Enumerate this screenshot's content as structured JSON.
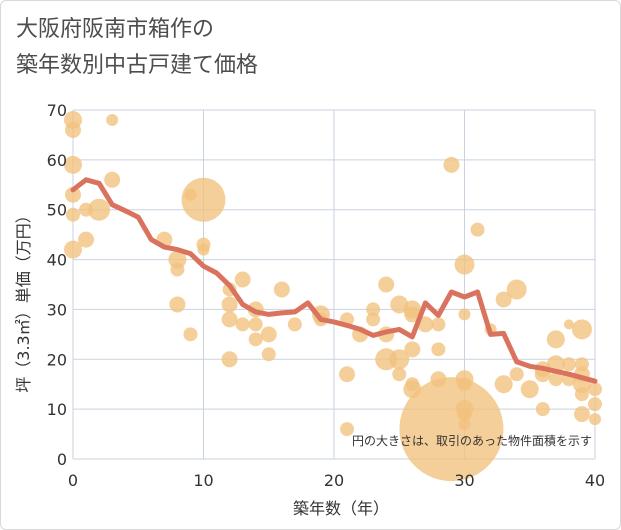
{
  "title_lines": [
    "大阪府阪南市箱作の",
    "築年数別中古戸建て価格"
  ],
  "chart_data": {
    "type": "scatter",
    "title": "大阪府阪南市箱作の築年数別中古戸建て価格",
    "xlabel": "築年数（年）",
    "ylabel": "坪（3.3㎡）単価（万円）",
    "xlim": [
      0,
      40
    ],
    "ylim": [
      0,
      70
    ],
    "xticks": [
      0,
      10,
      20,
      30,
      40
    ],
    "yticks": [
      0,
      10,
      20,
      30,
      40,
      50,
      60,
      70
    ],
    "grid": true,
    "annotation": "円の大きさは、取引のあった物件面積を示す",
    "colors": {
      "bubble": "#f2c27d",
      "line": "#d9735e",
      "grid": "#c9d3e0"
    },
    "series": [
      {
        "kind": "bubble",
        "points": [
          {
            "x": 0,
            "y": 68,
            "s": 9
          },
          {
            "x": 0,
            "y": 66,
            "s": 8
          },
          {
            "x": 0,
            "y": 59,
            "s": 9
          },
          {
            "x": 0,
            "y": 53,
            "s": 8
          },
          {
            "x": 0,
            "y": 49,
            "s": 7
          },
          {
            "x": 0,
            "y": 42,
            "s": 9
          },
          {
            "x": 1,
            "y": 50,
            "s": 7
          },
          {
            "x": 1,
            "y": 44,
            "s": 8
          },
          {
            "x": 2,
            "y": 50,
            "s": 11
          },
          {
            "x": 3,
            "y": 68,
            "s": 6
          },
          {
            "x": 3,
            "y": 56,
            "s": 8
          },
          {
            "x": 7,
            "y": 44,
            "s": 8
          },
          {
            "x": 8,
            "y": 40,
            "s": 9
          },
          {
            "x": 8,
            "y": 38,
            "s": 7
          },
          {
            "x": 8,
            "y": 31,
            "s": 8
          },
          {
            "x": 9,
            "y": 53,
            "s": 6
          },
          {
            "x": 9,
            "y": 25,
            "s": 7
          },
          {
            "x": 10,
            "y": 52,
            "s": 22
          },
          {
            "x": 10,
            "y": 43,
            "s": 7
          },
          {
            "x": 10,
            "y": 42,
            "s": 6
          },
          {
            "x": 12,
            "y": 34,
            "s": 7
          },
          {
            "x": 12,
            "y": 31,
            "s": 8
          },
          {
            "x": 12,
            "y": 28,
            "s": 8
          },
          {
            "x": 12,
            "y": 20,
            "s": 8
          },
          {
            "x": 13,
            "y": 36,
            "s": 8
          },
          {
            "x": 13,
            "y": 27,
            "s": 7
          },
          {
            "x": 14,
            "y": 30,
            "s": 8
          },
          {
            "x": 14,
            "y": 27,
            "s": 7
          },
          {
            "x": 14,
            "y": 24,
            "s": 7
          },
          {
            "x": 15,
            "y": 25,
            "s": 8
          },
          {
            "x": 15,
            "y": 21,
            "s": 7
          },
          {
            "x": 16,
            "y": 34,
            "s": 8
          },
          {
            "x": 17,
            "y": 27,
            "s": 7
          },
          {
            "x": 19,
            "y": 29,
            "s": 9
          },
          {
            "x": 19,
            "y": 28,
            "s": 7
          },
          {
            "x": 21,
            "y": 28,
            "s": 7
          },
          {
            "x": 21,
            "y": 17,
            "s": 8
          },
          {
            "x": 21,
            "y": 6,
            "s": 7
          },
          {
            "x": 22,
            "y": 25,
            "s": 8
          },
          {
            "x": 23,
            "y": 30,
            "s": 7
          },
          {
            "x": 23,
            "y": 28,
            "s": 7
          },
          {
            "x": 24,
            "y": 35,
            "s": 8
          },
          {
            "x": 24,
            "y": 25,
            "s": 8
          },
          {
            "x": 24,
            "y": 20,
            "s": 11
          },
          {
            "x": 25,
            "y": 31,
            "s": 9
          },
          {
            "x": 25,
            "y": 20,
            "s": 10
          },
          {
            "x": 25,
            "y": 17,
            "s": 7
          },
          {
            "x": 26,
            "y": 30,
            "s": 9
          },
          {
            "x": 26,
            "y": 29,
            "s": 8
          },
          {
            "x": 26,
            "y": 22,
            "s": 8
          },
          {
            "x": 26,
            "y": 15,
            "s": 7
          },
          {
            "x": 26,
            "y": 14,
            "s": 9
          },
          {
            "x": 27,
            "y": 27,
            "s": 8
          },
          {
            "x": 28,
            "y": 27,
            "s": 7
          },
          {
            "x": 28,
            "y": 22,
            "s": 7
          },
          {
            "x": 28,
            "y": 16,
            "s": 8
          },
          {
            "x": 29,
            "y": 59,
            "s": 8
          },
          {
            "x": 29,
            "y": 6,
            "s": 52
          },
          {
            "x": 30,
            "y": 39,
            "s": 10
          },
          {
            "x": 30,
            "y": 29,
            "s": 6
          },
          {
            "x": 30,
            "y": 16,
            "s": 9
          },
          {
            "x": 30,
            "y": 15,
            "s": 7
          },
          {
            "x": 30,
            "y": 10,
            "s": 9
          },
          {
            "x": 30,
            "y": 9,
            "s": 7
          },
          {
            "x": 30,
            "y": 7,
            "s": 6
          },
          {
            "x": 31,
            "y": 46,
            "s": 7
          },
          {
            "x": 32,
            "y": 26,
            "s": 6
          },
          {
            "x": 33,
            "y": 32,
            "s": 8
          },
          {
            "x": 33,
            "y": 15,
            "s": 9
          },
          {
            "x": 34,
            "y": 34,
            "s": 10
          },
          {
            "x": 34,
            "y": 17,
            "s": 7
          },
          {
            "x": 35,
            "y": 14,
            "s": 9
          },
          {
            "x": 36,
            "y": 18,
            "s": 8
          },
          {
            "x": 36,
            "y": 17,
            "s": 8
          },
          {
            "x": 36,
            "y": 10,
            "s": 7
          },
          {
            "x": 37,
            "y": 24,
            "s": 9
          },
          {
            "x": 37,
            "y": 19,
            "s": 9
          },
          {
            "x": 37,
            "y": 16,
            "s": 7
          },
          {
            "x": 38,
            "y": 27,
            "s": 5
          },
          {
            "x": 38,
            "y": 19,
            "s": 7
          },
          {
            "x": 38,
            "y": 16,
            "s": 7
          },
          {
            "x": 39,
            "y": 26,
            "s": 10
          },
          {
            "x": 39,
            "y": 19,
            "s": 7
          },
          {
            "x": 39,
            "y": 17,
            "s": 8
          },
          {
            "x": 39,
            "y": 15,
            "s": 9
          },
          {
            "x": 39,
            "y": 13,
            "s": 7
          },
          {
            "x": 39,
            "y": 9,
            "s": 8
          },
          {
            "x": 40,
            "y": 14,
            "s": 7
          },
          {
            "x": 40,
            "y": 11,
            "s": 7
          },
          {
            "x": 40,
            "y": 8,
            "s": 6
          }
        ]
      },
      {
        "kind": "line",
        "x": [
          0,
          1,
          2,
          3,
          4,
          5,
          6,
          7,
          8,
          9,
          10,
          11,
          12,
          13,
          14,
          15,
          16,
          17,
          18,
          19,
          20,
          21,
          22,
          23,
          24,
          25,
          26,
          27,
          28,
          29,
          30,
          31,
          32,
          33,
          34,
          35,
          36,
          37,
          38,
          39,
          40
        ],
        "y": [
          54,
          56,
          55.3,
          51,
          49.8,
          48.5,
          44,
          42.5,
          42,
          41.2,
          38.7,
          37.3,
          34.8,
          31,
          29.5,
          29,
          29.3,
          29.5,
          31.3,
          28,
          27.5,
          26.8,
          26,
          24.8,
          25.5,
          26,
          24.5,
          31.3,
          28.8,
          33.5,
          32.5,
          33.5,
          25,
          25.2,
          19.5,
          18.6,
          18.2,
          17.6,
          17,
          16.3,
          15.6
        ]
      }
    ]
  }
}
